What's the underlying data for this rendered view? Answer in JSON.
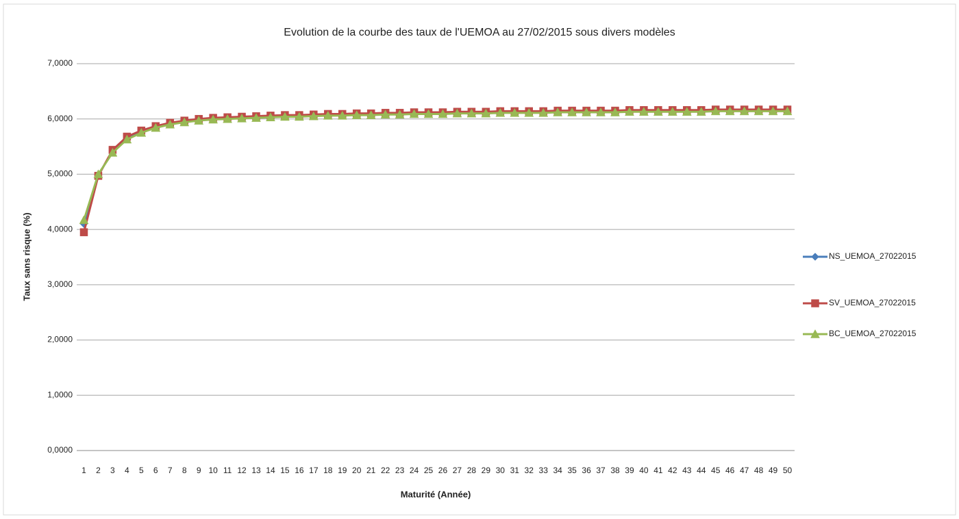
{
  "chart_data": {
    "type": "line",
    "title": "Evolution de la courbe des taux de l'UEMOA au 27/02/2015 sous divers modèles",
    "xlabel": "Maturité (Année)",
    "ylabel": "Taux sans risque (%)",
    "categories": [
      "1",
      "2",
      "3",
      "4",
      "5",
      "6",
      "7",
      "8",
      "9",
      "10",
      "11",
      "12",
      "13",
      "14",
      "15",
      "16",
      "17",
      "18",
      "19",
      "20",
      "21",
      "22",
      "23",
      "24",
      "25",
      "26",
      "27",
      "28",
      "29",
      "30",
      "31",
      "32",
      "33",
      "34",
      "35",
      "36",
      "37",
      "38",
      "39",
      "40",
      "41",
      "42",
      "43",
      "44",
      "45",
      "46",
      "47",
      "48",
      "49",
      "50"
    ],
    "series": [
      {
        "name": "NS_UEMOA_27022015",
        "color": "#4a7ebb",
        "marker": "diamond",
        "values": [
          4.1,
          4.98,
          5.42,
          5.65,
          5.77,
          5.85,
          5.91,
          5.95,
          5.98,
          6.0,
          6.01,
          6.02,
          6.03,
          6.04,
          6.05,
          6.05,
          6.06,
          6.07,
          6.07,
          6.08,
          6.08,
          6.09,
          6.09,
          6.1,
          6.1,
          6.1,
          6.11,
          6.11,
          6.11,
          6.12,
          6.12,
          6.12,
          6.12,
          6.13,
          6.13,
          6.13,
          6.13,
          6.13,
          6.14,
          6.14,
          6.14,
          6.14,
          6.14,
          6.14,
          6.15,
          6.15,
          6.15,
          6.15,
          6.15,
          6.15
        ]
      },
      {
        "name": "SV_UEMOA_27022015",
        "color": "#be4b48",
        "marker": "square",
        "values": [
          3.95,
          4.97,
          5.44,
          5.68,
          5.79,
          5.87,
          5.93,
          5.97,
          6.0,
          6.02,
          6.03,
          6.04,
          6.05,
          6.06,
          6.07,
          6.07,
          6.08,
          6.09,
          6.09,
          6.1,
          6.1,
          6.11,
          6.11,
          6.12,
          6.12,
          6.12,
          6.13,
          6.13,
          6.13,
          6.14,
          6.14,
          6.14,
          6.14,
          6.15,
          6.15,
          6.15,
          6.15,
          6.15,
          6.16,
          6.16,
          6.16,
          6.16,
          6.16,
          6.16,
          6.17,
          6.17,
          6.17,
          6.17,
          6.17,
          6.17
        ]
      },
      {
        "name": "BC_UEMOA_27022015",
        "color": "#98b954",
        "marker": "triangle",
        "values": [
          4.17,
          5.0,
          5.39,
          5.63,
          5.75,
          5.84,
          5.9,
          5.94,
          5.97,
          5.99,
          6.0,
          6.01,
          6.02,
          6.03,
          6.04,
          6.04,
          6.05,
          6.06,
          6.06,
          6.07,
          6.07,
          6.08,
          6.08,
          6.09,
          6.09,
          6.09,
          6.1,
          6.1,
          6.1,
          6.11,
          6.11,
          6.11,
          6.11,
          6.12,
          6.12,
          6.12,
          6.12,
          6.12,
          6.13,
          6.13,
          6.13,
          6.13,
          6.13,
          6.13,
          6.14,
          6.14,
          6.14,
          6.14,
          6.14,
          6.14
        ]
      }
    ],
    "ylim": [
      0,
      7
    ],
    "yticks": [
      {
        "value": 0,
        "label": "0,0000"
      },
      {
        "value": 1,
        "label": "1,0000"
      },
      {
        "value": 2,
        "label": "2,0000"
      },
      {
        "value": 3,
        "label": "3,0000"
      },
      {
        "value": 4,
        "label": "4,0000"
      },
      {
        "value": 5,
        "label": "5,0000"
      },
      {
        "value": 6,
        "label": "6,0000"
      },
      {
        "value": 7,
        "label": "7,0000"
      }
    ],
    "grid": true,
    "legend": "right"
  }
}
